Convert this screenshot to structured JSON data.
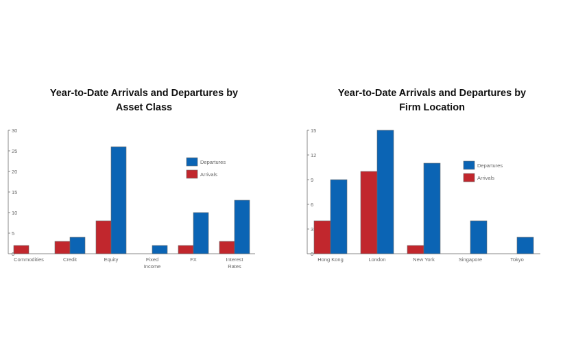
{
  "colors": {
    "departures": "#0b64b4",
    "arrivals": "#c1272d",
    "axis": "#888888"
  },
  "chart_data": [
    {
      "type": "bar",
      "title": "Year-to-Date Arrivals and Departures by\nAsset Class",
      "categories": [
        "Commodities",
        "Credit",
        "Equity",
        "Fixed\nIncome",
        "FX",
        "Interest\nRates"
      ],
      "series": [
        {
          "name": "Arrivals",
          "color": "#c1272d",
          "values": [
            2,
            3,
            8,
            0,
            2,
            3
          ]
        },
        {
          "name": "Departures",
          "color": "#0b64b4",
          "values": [
            0,
            4,
            26,
            2,
            10,
            13
          ]
        }
      ],
      "yticks": [
        0,
        5,
        10,
        15,
        20,
        25,
        30
      ],
      "ylim": [
        0,
        30
      ],
      "grid": false,
      "legend": {
        "position": "right",
        "entries": [
          "Departures",
          "Arrivals"
        ]
      }
    },
    {
      "type": "bar",
      "title": "Year-to-Date Arrivals and Departures by\nFirm Location",
      "categories": [
        "Hong Kong",
        "London",
        "New York",
        "Singapore",
        "Tokyo"
      ],
      "series": [
        {
          "name": "Arrivals",
          "color": "#c1272d",
          "values": [
            4,
            10,
            1,
            0,
            0
          ]
        },
        {
          "name": "Departures",
          "color": "#0b64b4",
          "values": [
            9,
            15,
            11,
            4,
            2
          ]
        }
      ],
      "yticks": [
        0,
        3,
        6,
        9,
        12,
        15
      ],
      "ylim": [
        0,
        15
      ],
      "grid": false,
      "legend": {
        "position": "right",
        "entries": [
          "Departures",
          "Arrivals"
        ]
      }
    }
  ]
}
